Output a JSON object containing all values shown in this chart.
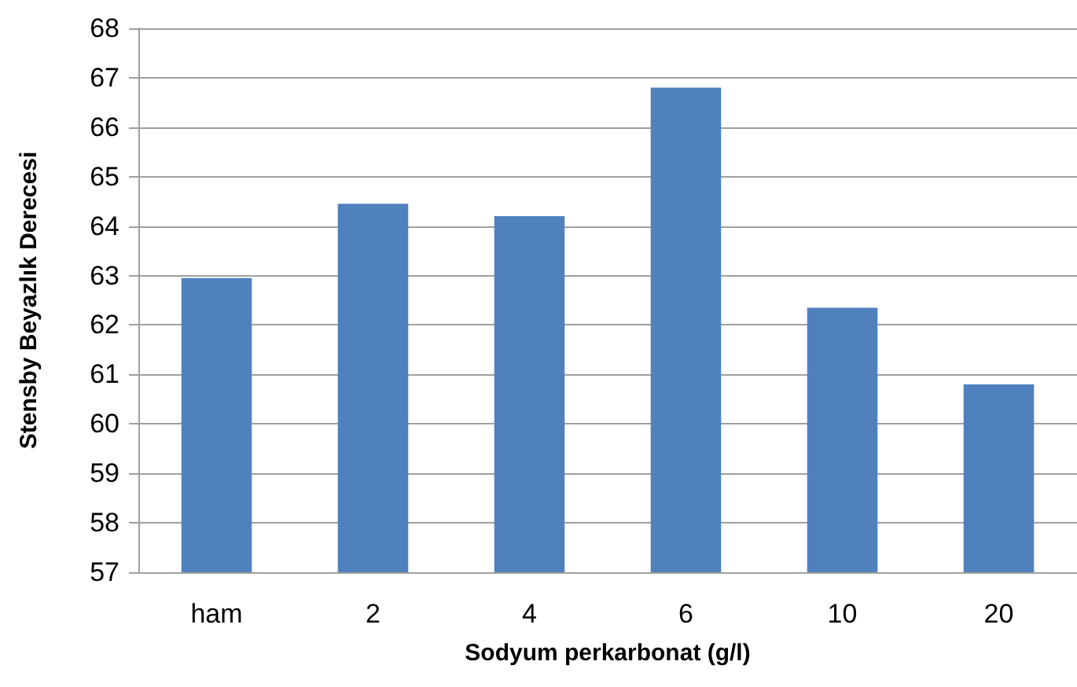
{
  "chart_data": {
    "type": "bar",
    "xlabel": "Sodyum perkarbonat (g/l)",
    "ylabel": "Stensby Beyazlık Derecesi",
    "categories": [
      "ham",
      "2",
      "4",
      "6",
      "10",
      "20"
    ],
    "values": [
      62.95,
      64.45,
      64.2,
      66.8,
      62.35,
      60.8
    ],
    "color": "#4f81bd",
    "ylim": [
      57,
      68
    ],
    "yticks": [
      57,
      58,
      59,
      60,
      61,
      62,
      63,
      64,
      65,
      66,
      67,
      68
    ],
    "grid": "y"
  }
}
